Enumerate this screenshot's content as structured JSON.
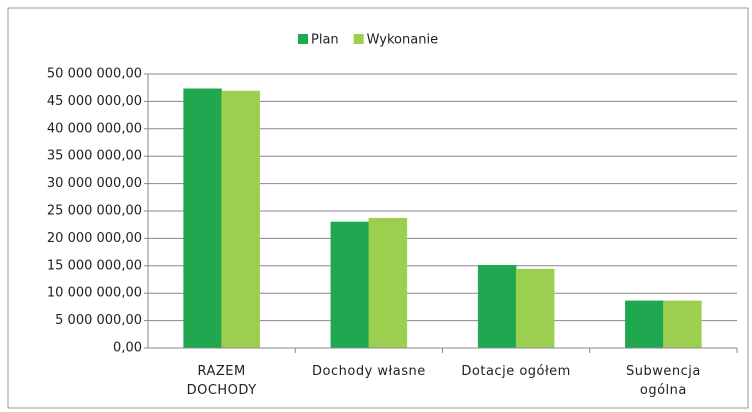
{
  "chart_data": {
    "type": "bar",
    "categories": [
      "RAZEM\nDOCHODY",
      "Dochody własne",
      "Dotacje ogółem",
      "Subwencja\nogólna"
    ],
    "series": [
      {
        "name": "Plan",
        "color": "#1fa84f",
        "values": [
          47300000,
          23000000,
          15100000,
          8600000
        ]
      },
      {
        "name": "Wykonanie",
        "color": "#9ccf4f",
        "values": [
          46900000,
          23700000,
          14400000,
          8600000
        ]
      }
    ],
    "ylim": [
      0,
      50000000
    ],
    "yticks": [
      {
        "value": 0,
        "label": "0,00"
      },
      {
        "value": 5000000,
        "label": "5 000 000,00"
      },
      {
        "value": 10000000,
        "label": "10 000 000,00"
      },
      {
        "value": 15000000,
        "label": "15 000 000,00"
      },
      {
        "value": 20000000,
        "label": "20 000 000,00"
      },
      {
        "value": 25000000,
        "label": "25 000 000,00"
      },
      {
        "value": 30000000,
        "label": "30 000 000,00"
      },
      {
        "value": 35000000,
        "label": "35 000 000,00"
      },
      {
        "value": 40000000,
        "label": "40 000 000,00"
      },
      {
        "value": 45000000,
        "label": "45 000 000,00"
      },
      {
        "value": 50000000,
        "label": "50 000 000,00"
      }
    ],
    "grid": true,
    "legend": "top"
  }
}
